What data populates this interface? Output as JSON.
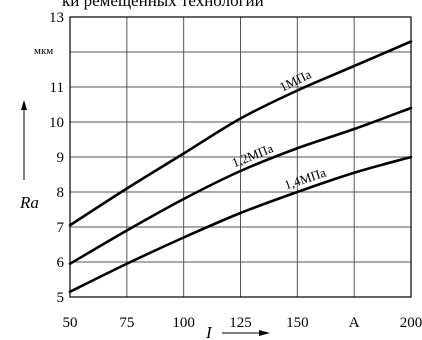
{
  "title": "ки ремещенных технологии",
  "chart_data": {
    "type": "line",
    "title": "ки ремещенных технологии",
    "xlabel": "I",
    "ylabel": "Ra",
    "y_unit": "мкм",
    "x_unit": "A",
    "xlim": [
      50,
      200
    ],
    "ylim": [
      5,
      13
    ],
    "x_ticks": [
      "50",
      "75",
      "100",
      "125",
      "150",
      "A",
      "200"
    ],
    "y_ticks": [
      "5",
      "6",
      "7",
      "8",
      "9",
      "10",
      "11",
      "",
      "13"
    ],
    "grid": true,
    "series": [
      {
        "name": "1МПа",
        "x": [
          50,
          75,
          100,
          125,
          150,
          175,
          200
        ],
        "y": [
          7.05,
          8.1,
          9.1,
          10.1,
          10.9,
          11.6,
          12.3
        ]
      },
      {
        "name": "1,2МПа",
        "x": [
          50,
          75,
          100,
          125,
          150,
          175,
          200
        ],
        "y": [
          5.95,
          6.9,
          7.8,
          8.6,
          9.25,
          9.8,
          10.4
        ]
      },
      {
        "name": "1,4МПа",
        "x": [
          50,
          75,
          100,
          125,
          150,
          175,
          200
        ],
        "y": [
          5.15,
          5.95,
          6.7,
          7.4,
          8.0,
          8.55,
          9.0
        ]
      }
    ]
  }
}
